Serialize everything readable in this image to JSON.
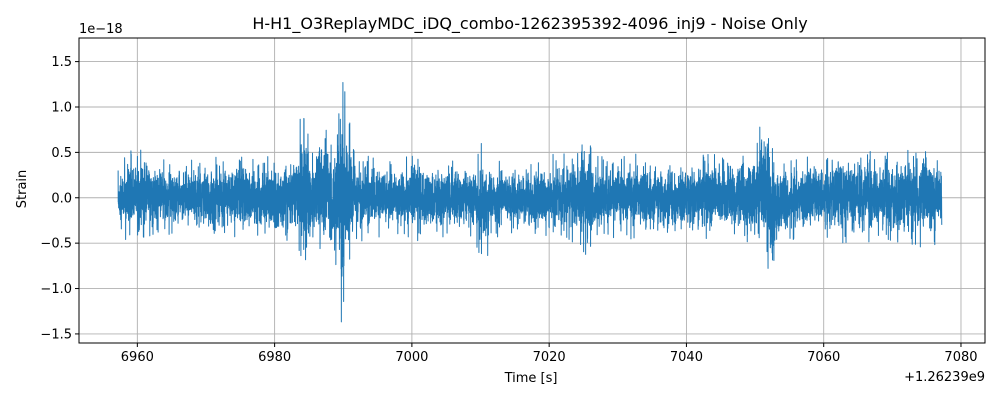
{
  "chart_data": {
    "type": "line",
    "title": "H-H1_O3ReplayMDC_iDQ_combo-1262395392-4096_inj9 - Noise Only",
    "xlabel": "Time [s]",
    "ylabel": "Strain",
    "x_offset_label": "+1.26239e9",
    "y_scale_label": "1e−18",
    "xlim": [
      6951.5,
      7083.5
    ],
    "ylim": [
      -1.6,
      1.76
    ],
    "x_ticks": [
      6960,
      6980,
      7000,
      7020,
      7040,
      7060,
      7080
    ],
    "x_tick_labels": [
      "6960",
      "6980",
      "7000",
      "7020",
      "7040",
      "7060",
      "7080"
    ],
    "y_ticks": [
      -1.5,
      -1.0,
      -0.5,
      0.0,
      0.5,
      1.0,
      1.5
    ],
    "y_tick_labels": [
      "−1.5",
      "−1.0",
      "−0.5",
      "0.0",
      "0.5",
      "1.0",
      "1.5"
    ],
    "grid": true,
    "series": [
      {
        "color": "#1f77b4",
        "x_range": [
          6957.2,
          7077.2
        ],
        "envelope_x": [
          6957.2,
          6958.5,
          6960,
          6963,
          6967,
          6972,
          6975,
          6978,
          6981,
          6983,
          6984.5,
          6985.5,
          6987,
          6988.5,
          6989.5,
          6990.0,
          6990.6,
          6992,
          6994,
          6996,
          6998,
          7000,
          7003,
          7006,
          7009,
          7010.5,
          7012,
          7015,
          7018,
          7020,
          7022,
          7024,
          7025.5,
          7027,
          7030,
          7033,
          7036,
          7039,
          7042,
          7045,
          7048,
          7050,
          7051.5,
          7052.5,
          7053.5,
          7055,
          7058,
          7062,
          7066,
          7070,
          7074,
          7077.2
        ],
        "envelope_upper": [
          0.3,
          0.5,
          0.58,
          0.45,
          0.42,
          0.45,
          0.5,
          0.42,
          0.52,
          0.6,
          1.15,
          0.55,
          0.9,
          0.65,
          1.3,
          1.6,
          0.95,
          0.5,
          0.45,
          0.42,
          0.45,
          0.55,
          0.45,
          0.42,
          0.45,
          0.65,
          0.4,
          0.42,
          0.4,
          0.45,
          0.55,
          0.5,
          0.72,
          0.5,
          0.45,
          0.5,
          0.45,
          0.48,
          0.55,
          0.45,
          0.5,
          0.72,
          0.85,
          0.65,
          0.55,
          0.5,
          0.5,
          0.55,
          0.5,
          0.55,
          0.58,
          0.5
        ],
        "envelope_lower": [
          -0.35,
          -0.55,
          -0.45,
          -0.4,
          -0.42,
          -0.45,
          -0.5,
          -0.45,
          -0.55,
          -0.45,
          -0.98,
          -0.5,
          -0.8,
          -0.6,
          -1.3,
          -1.45,
          -0.9,
          -0.5,
          -0.45,
          -0.42,
          -0.45,
          -0.48,
          -0.45,
          -0.42,
          -0.45,
          -0.75,
          -0.45,
          -0.42,
          -0.45,
          -0.45,
          -0.55,
          -0.5,
          -0.68,
          -0.5,
          -0.45,
          -0.48,
          -0.45,
          -0.48,
          -0.55,
          -0.45,
          -0.5,
          -0.65,
          -0.82,
          -0.92,
          -0.6,
          -0.5,
          -0.48,
          -0.5,
          -0.48,
          -0.52,
          -0.55,
          -0.5
        ]
      }
    ]
  }
}
